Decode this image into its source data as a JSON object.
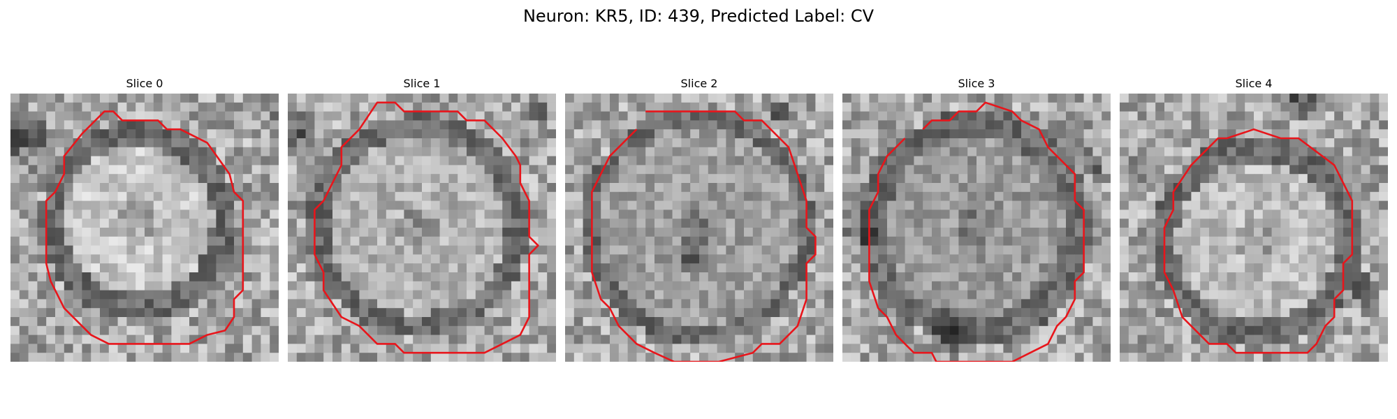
{
  "figure": {
    "title": "Neuron: KR5, ID: 439, Predicted Label: CV"
  },
  "panels": [
    {
      "title": "Slice 0"
    },
    {
      "title": "Slice 1"
    },
    {
      "title": "Slice 2"
    },
    {
      "title": "Slice 3"
    },
    {
      "title": "Slice 4"
    }
  ],
  "colors": {
    "contour": "#e8151b",
    "background": "#ffffff"
  }
}
